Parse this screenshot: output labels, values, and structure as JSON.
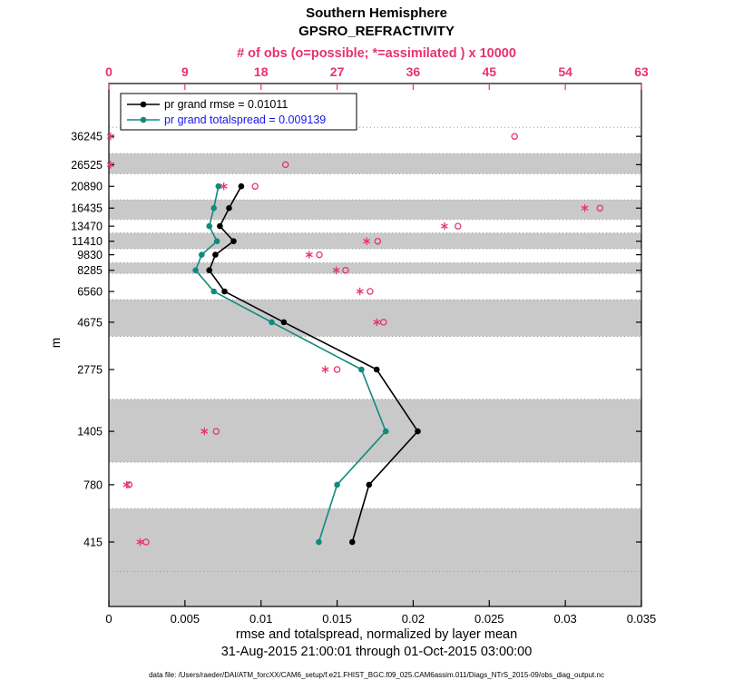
{
  "figure": {
    "title": "Southern Hemisphere",
    "subtitle": "GPSRO_REFRACTIVITY",
    "top_axis_label": "# of obs (o=possible; *=assimilated ) x 10000",
    "ylabel": "m",
    "xlabel": "rmse and totalspread, normalized by layer mean",
    "date_range": "31-Aug-2015 21:00:01 through 01-Oct-2015 03:00:00",
    "datafile": "data file: /Users/raeder/DAI/ATM_forcXX/CAM6_setup/f.e21.FHIST_BGC.f09_025.CAM6assim.011/Diags_NTrS_2015-09/obs_diag_output.nc"
  },
  "colors": {
    "obs": "#e8326f",
    "rmse": "#000000",
    "spread_line": "#12897d",
    "spread_text": "#1616e8",
    "band": "#c9c9c9",
    "grid": "#9a9a9a",
    "axis": "#000000"
  },
  "chart_data": {
    "type": "line",
    "title": "Southern Hemisphere GPSRO_REFRACTIVITY",
    "y_axis": {
      "label": "m",
      "scale": "log",
      "range": [
        204,
        64850
      ],
      "tick_levels": [
        36245,
        26525,
        20890,
        16435,
        13470,
        11410,
        9830,
        8285,
        6560,
        4675,
        2775,
        1405,
        780,
        415
      ]
    },
    "x_bottom": {
      "label": "rmse and totalspread, normalized by layer mean",
      "range": [
        0,
        0.035
      ],
      "ticks": [
        0,
        0.005,
        0.01,
        0.015,
        0.02,
        0.025,
        0.03,
        0.035
      ]
    },
    "x_top": {
      "label": "# of obs (o=possible; *=assimilated ) x 10000",
      "range": [
        0,
        63
      ],
      "ticks": [
        0,
        9,
        18,
        27,
        36,
        45,
        54,
        63
      ]
    },
    "bin_edges": [
      300,
      600,
      1000,
      2000,
      4000,
      6000,
      8000,
      9000,
      10500,
      12500,
      14500,
      18000,
      24000,
      30000,
      40000
    ],
    "shaded_bins": [
      [
        204,
        600
      ],
      [
        1000,
        2000
      ],
      [
        4000,
        6000
      ],
      [
        8000,
        9000
      ],
      [
        10500,
        12500
      ],
      [
        14500,
        18000
      ],
      [
        24000,
        30000
      ]
    ],
    "series": [
      {
        "name": "pr grand rmse = 0.01011",
        "levels": [
          20890,
          16435,
          13470,
          11410,
          9830,
          8285,
          6560,
          4675,
          2775,
          1405,
          780,
          415
        ],
        "values": [
          0.0087,
          0.0079,
          0.0073,
          0.0082,
          0.007,
          0.0066,
          0.0076,
          0.0115,
          0.0176,
          0.0203,
          0.0171,
          0.016
        ]
      },
      {
        "name": "pr grand totalspread = 0.009139",
        "levels": [
          20890,
          16435,
          13470,
          11410,
          9830,
          8285,
          6560,
          4675,
          2775,
          1405,
          780,
          415
        ],
        "values": [
          0.0072,
          0.0069,
          0.0066,
          0.0071,
          0.0061,
          0.0057,
          0.0069,
          0.0107,
          0.0166,
          0.0182,
          0.015,
          0.0138
        ]
      }
    ],
    "obs_counts": {
      "units": "x 10000",
      "levels": [
        36245,
        26525,
        20890,
        16435,
        13470,
        11410,
        9830,
        8285,
        6560,
        4675,
        2775,
        1405,
        780,
        415
      ],
      "assimilated": [
        0.2,
        0.2,
        13.6,
        56.3,
        39.7,
        30.5,
        23.7,
        26.9,
        29.7,
        31.7,
        25.6,
        11.3,
        2.1,
        3.7
      ],
      "possible": [
        48.0,
        20.9,
        17.3,
        58.1,
        41.3,
        31.8,
        24.9,
        28.0,
        30.9,
        32.5,
        27.0,
        12.7,
        2.4,
        4.4
      ]
    },
    "grand_totals": {
      "rmse": 0.01011,
      "totalspread": 0.009139
    }
  }
}
